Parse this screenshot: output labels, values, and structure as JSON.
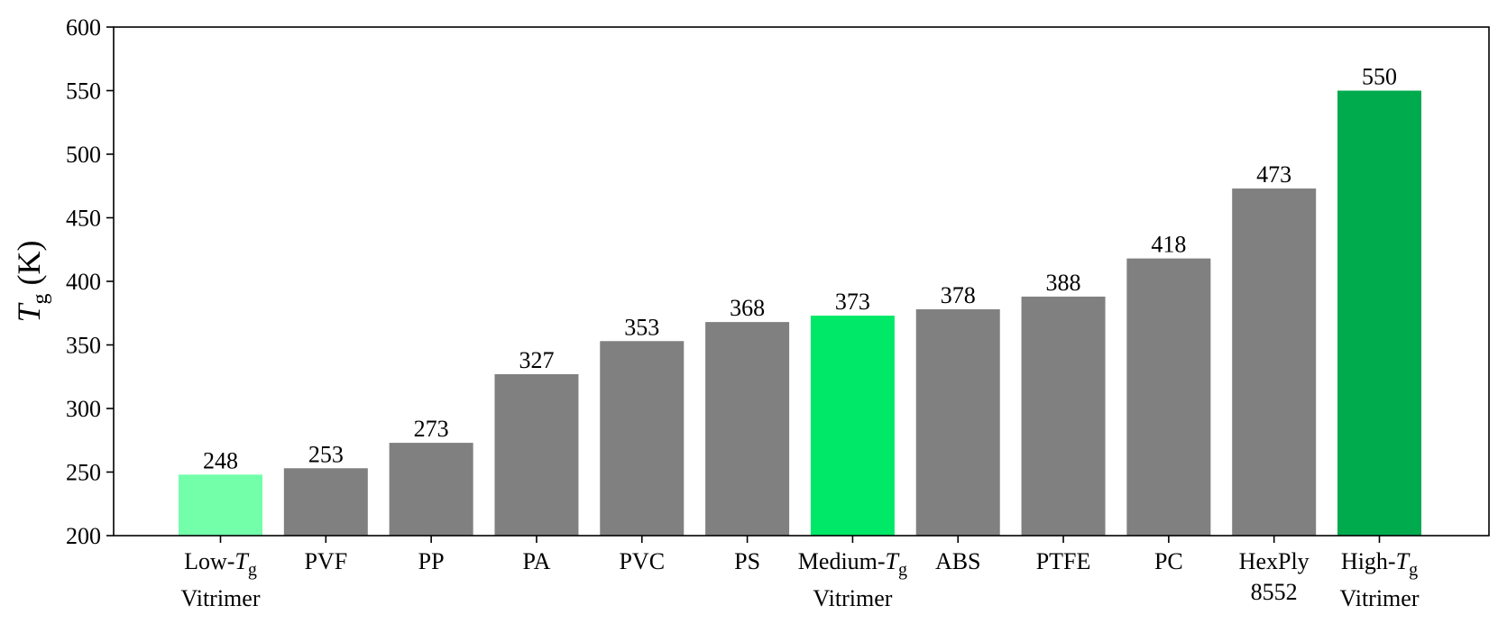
{
  "chart_data": {
    "type": "bar",
    "categories": [
      [
        "Low-",
        {
          "italic": "T"
        },
        {
          "sub": "g"
        },
        "\n",
        "Vitrimer"
      ],
      [
        "PVF"
      ],
      [
        "PP"
      ],
      [
        "PA"
      ],
      [
        "PVC"
      ],
      [
        "PS"
      ],
      [
        "Medium-",
        {
          "italic": "T"
        },
        {
          "sub": "g"
        },
        "\n",
        "Vitrimer"
      ],
      [
        "ABS"
      ],
      [
        "PTFE"
      ],
      [
        "PC"
      ],
      [
        "HexPly",
        "\n",
        "8552"
      ],
      [
        "High-",
        {
          "italic": "T"
        },
        {
          "sub": "g"
        },
        "\n",
        "Vitrimer"
      ]
    ],
    "values": [
      248,
      253,
      273,
      327,
      353,
      368,
      373,
      378,
      388,
      418,
      473,
      550
    ],
    "value_labels": [
      "248",
      "253",
      "273",
      "327",
      "353",
      "368",
      "373",
      "378",
      "388",
      "418",
      "473",
      "550"
    ],
    "colors": [
      "#73ffaa",
      "#808080",
      "#808080",
      "#808080",
      "#808080",
      "#808080",
      "#00e868",
      "#808080",
      "#808080",
      "#808080",
      "#808080",
      "#00ab4e"
    ],
    "ylabel": {
      "main": "T",
      "sub": "g",
      "rest": " (K)"
    },
    "ylim": [
      200,
      600
    ],
    "yticks": [
      200,
      250,
      300,
      350,
      400,
      450,
      500,
      550,
      600
    ],
    "grid": false
  }
}
